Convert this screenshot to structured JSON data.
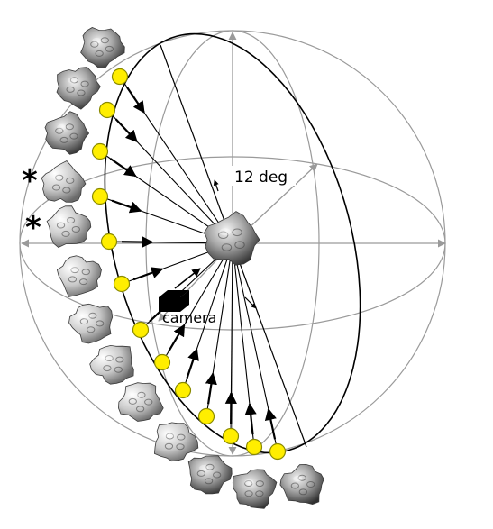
{
  "annotations": {
    "angle_label": "12 deg",
    "camera_label": "camera",
    "marker_symbol": "*"
  },
  "colors": {
    "sphere_lines": "#9a9a9a",
    "orbit_ellipse": "#000000",
    "light_dot_fill": "#ffee00",
    "light_dot_stroke": "#8a8a00",
    "arrows": "#000000",
    "camera": "#000000"
  },
  "illumination_sequence": {
    "light_position_count": 17,
    "rendered_view_count": 15,
    "marked_views": 2
  },
  "icons": [
    "asteroid-render",
    "light-position-dot",
    "camera-icon",
    "asterisk-marker"
  ]
}
